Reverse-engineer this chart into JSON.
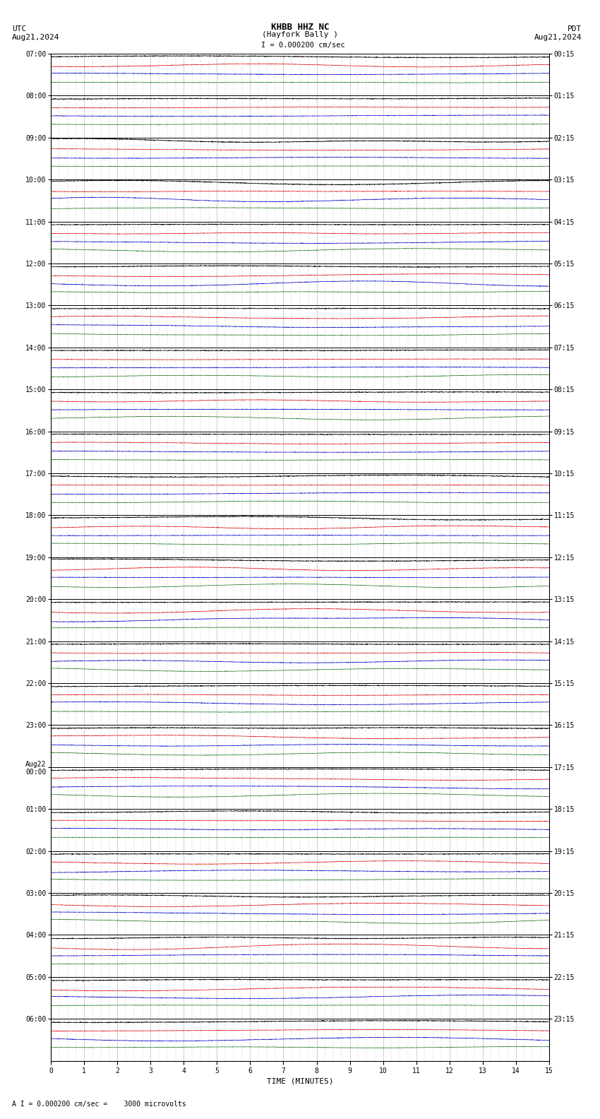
{
  "title_line1": "KHBB HHZ NC",
  "title_line2": "(Hayfork Bally )",
  "scale_text": "I = 0.000200 cm/sec",
  "left_header": "UTC",
  "left_date": "Aug21,2024",
  "right_header": "PDT",
  "right_date": "Aug21,2024",
  "bottom_label": "TIME (MINUTES)",
  "footnote": "A I = 0.000200 cm/sec =    3000 microvolts",
  "background_color": "#ffffff",
  "trace_colors": [
    "black",
    "#dd0000",
    "#0000cc",
    "#006600"
  ],
  "n_rows": 24,
  "x_min": 0,
  "x_max": 15,
  "utc_labels": [
    "07:00",
    "08:00",
    "09:00",
    "10:00",
    "11:00",
    "12:00",
    "13:00",
    "14:00",
    "15:00",
    "16:00",
    "17:00",
    "18:00",
    "19:00",
    "20:00",
    "21:00",
    "22:00",
    "23:00",
    "Aug22\n00:00",
    "01:00",
    "02:00",
    "03:00",
    "04:00",
    "05:00",
    "06:00"
  ],
  "pdt_labels": [
    "00:15",
    "01:15",
    "02:15",
    "03:15",
    "04:15",
    "05:15",
    "06:15",
    "07:15",
    "08:15",
    "09:15",
    "10:15",
    "11:15",
    "12:15",
    "13:15",
    "14:15",
    "15:15",
    "16:15",
    "17:15",
    "18:15",
    "19:15",
    "20:15",
    "21:15",
    "22:15",
    "23:15"
  ],
  "grid_color": "#aaaaaa",
  "fig_width": 8.5,
  "fig_height": 15.84
}
